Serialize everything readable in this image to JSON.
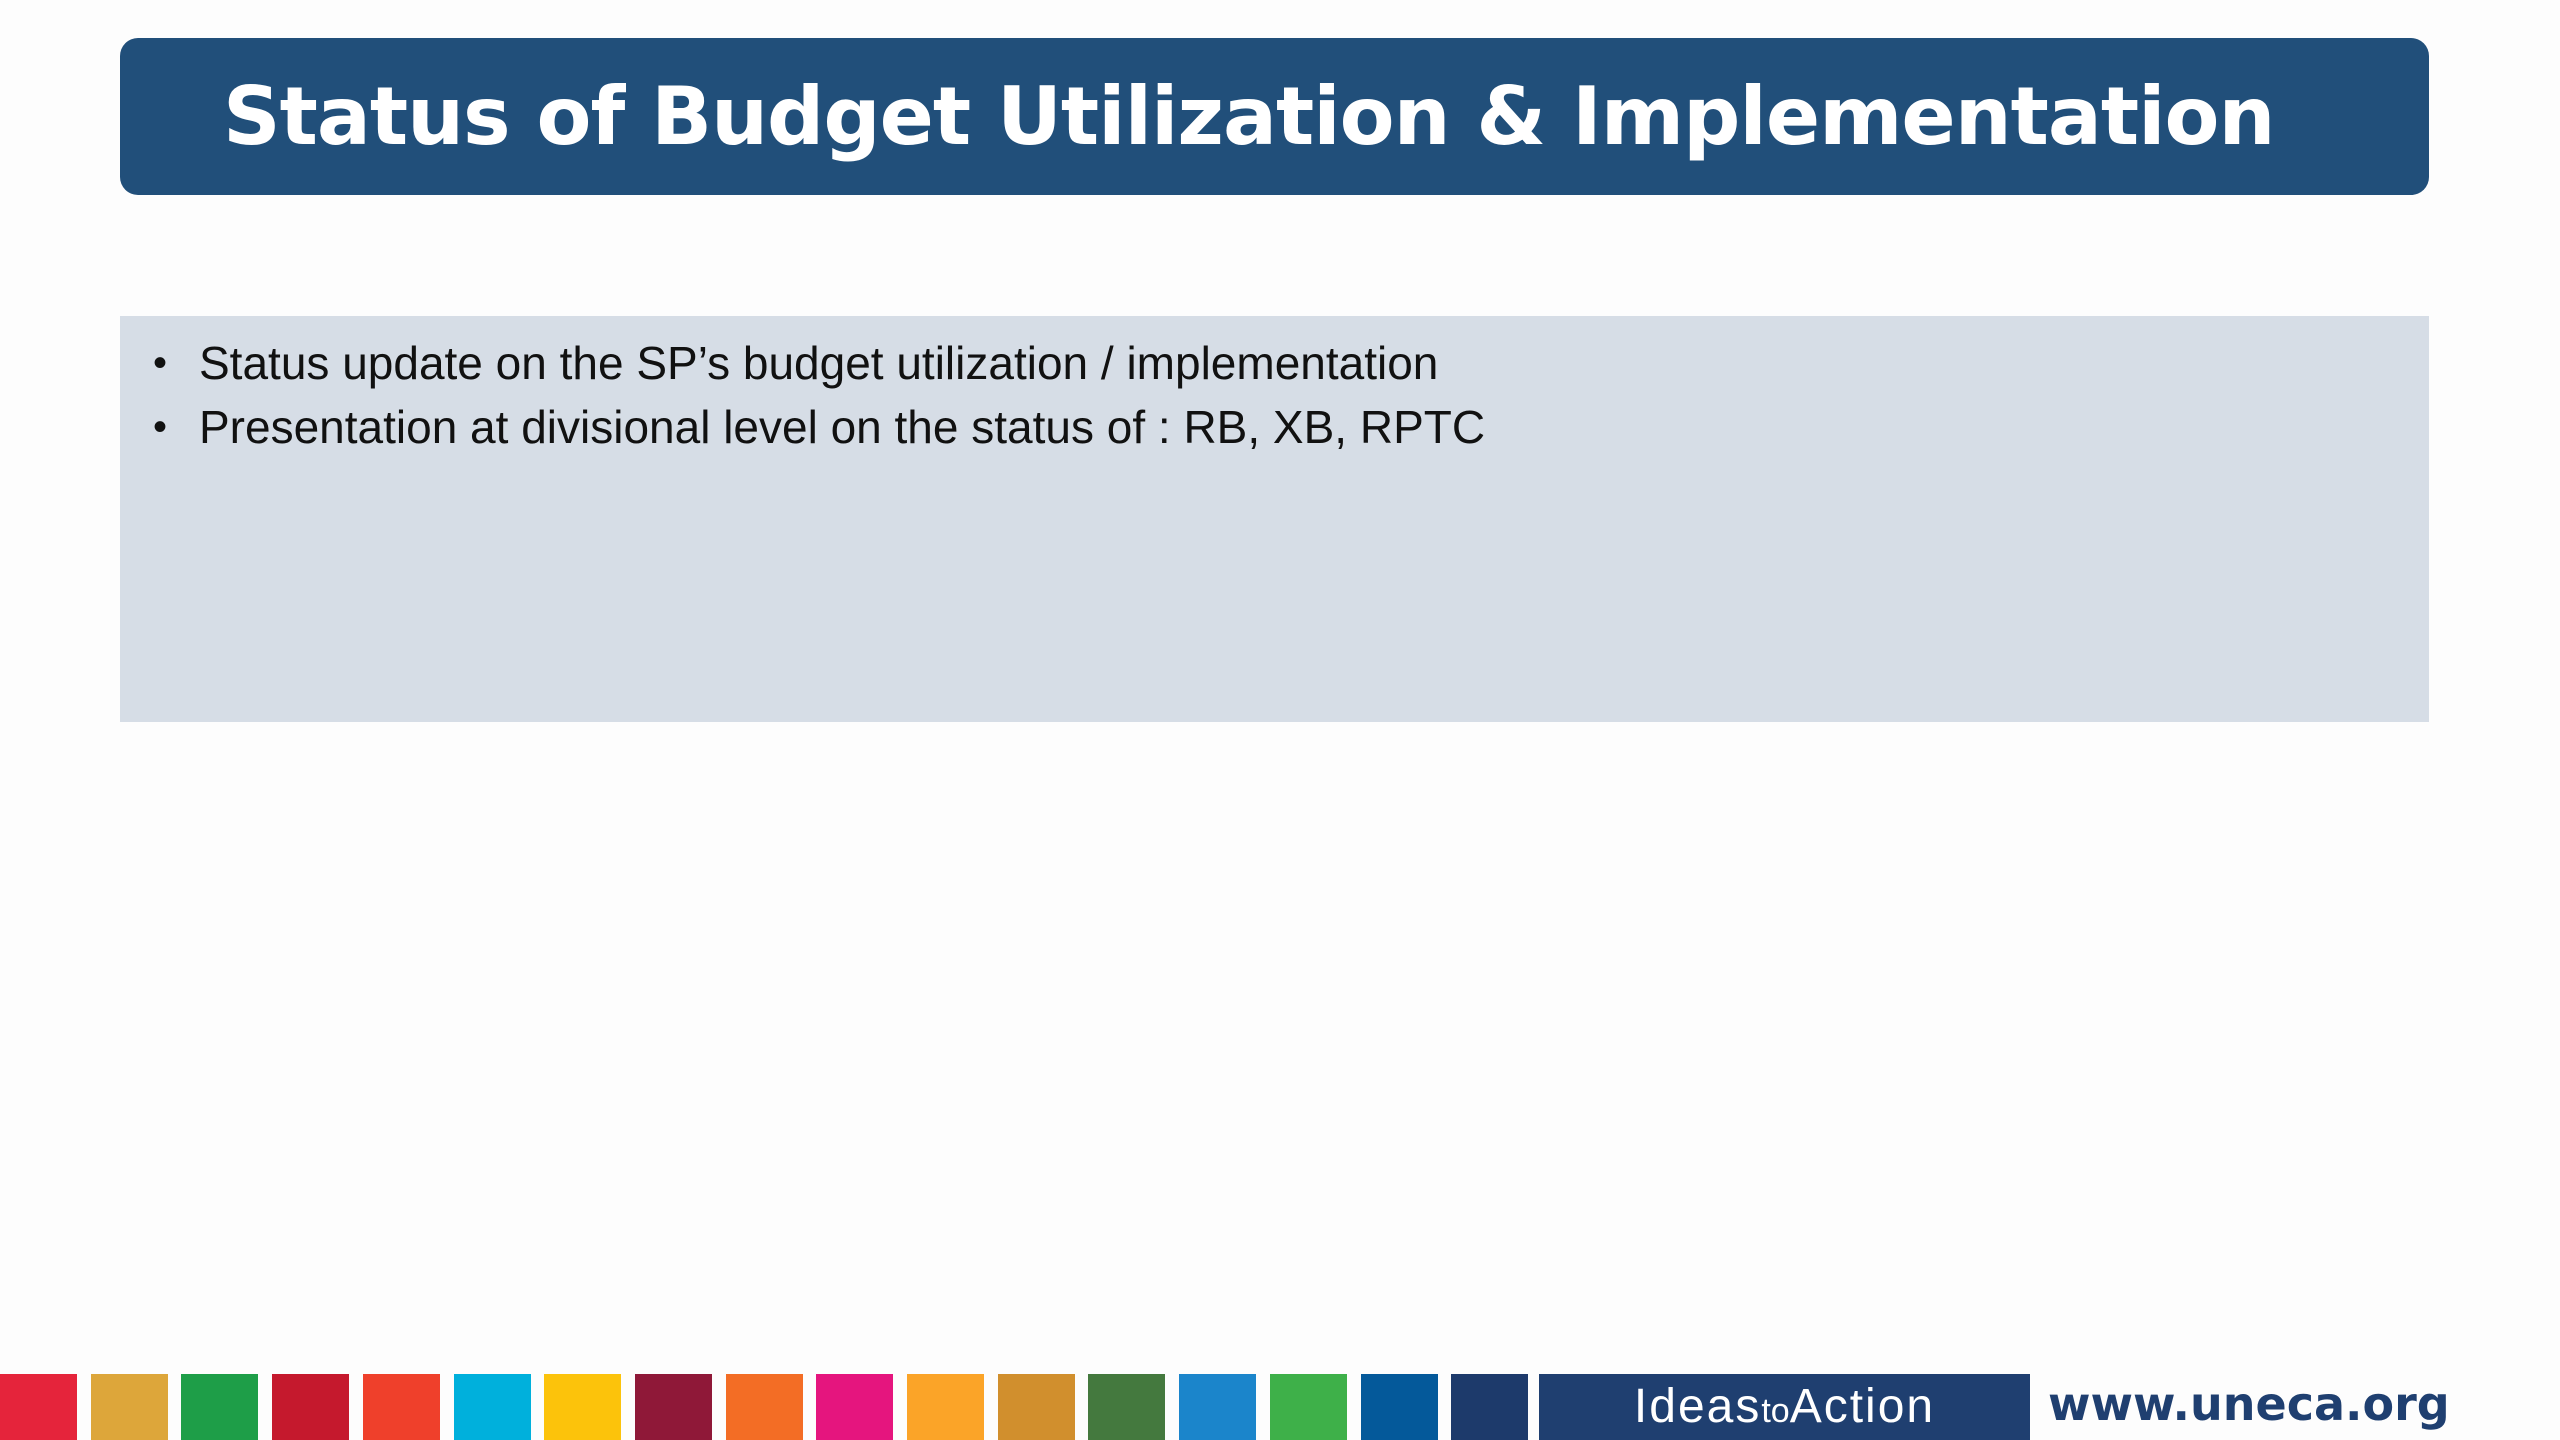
{
  "slide": {
    "title": "Status of Budget Utilization & Implementation",
    "bullets": [
      "Status update on the SP’s budget utilization / implementation",
      "Presentation at divisional level on the status of : RB, XB, RPTC"
    ],
    "bullet_glyph": "•"
  },
  "footer": {
    "tagline_part1": "Ideas",
    "tagline_part2": "to",
    "tagline_part3": "Action",
    "website": "www.uneca.org",
    "sdg_colors": [
      "#e5243b",
      "#dda63a",
      "#1e9e48",
      "#c5192d",
      "#ef402b",
      "#00b0dc",
      "#fcc30b",
      "#8f1838",
      "#f36d25",
      "#e5157e",
      "#fba428",
      "#d18f2d",
      "#44793e",
      "#1b85cb",
      "#3eb049",
      "#04599a",
      "#1d3a6b"
    ]
  }
}
